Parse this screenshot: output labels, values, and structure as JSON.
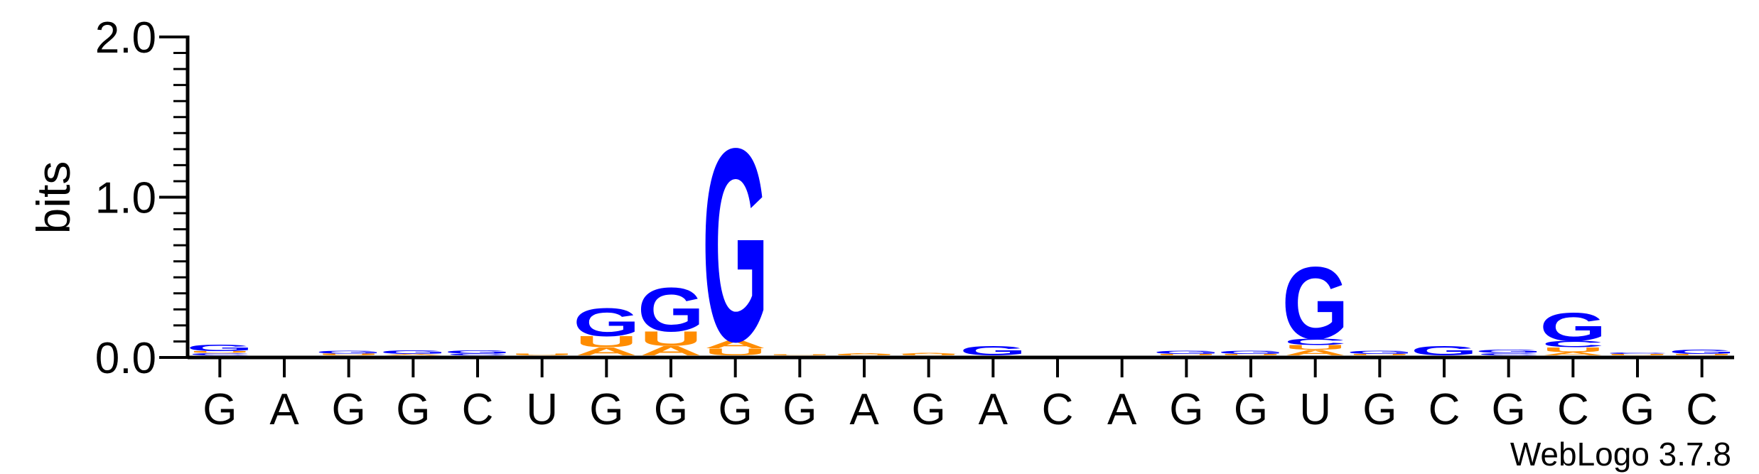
{
  "chart_data": {
    "type": "sequence-logo",
    "title": "",
    "ylabel": "bits",
    "xlabel": "",
    "ylim": [
      0,
      2.0
    ],
    "yticks": [
      "0.0",
      "1.0",
      "2.0"
    ],
    "credit": "WebLogo 3.7.8",
    "colors": {
      "G": "#0000ff",
      "C": "#0000ff",
      "U": "#ff8c00",
      "A": "#ff8c00"
    },
    "sequence": [
      "G",
      "A",
      "G",
      "G",
      "C",
      "U",
      "G",
      "G",
      "G",
      "G",
      "A",
      "G",
      "A",
      "C",
      "A",
      "G",
      "G",
      "U",
      "G",
      "C",
      "G",
      "C",
      "G",
      "C"
    ],
    "positions": [
      {
        "stack": [
          {
            "letter": "C",
            "bits": 0.015
          },
          {
            "letter": "U",
            "bits": 0.012
          },
          {
            "letter": "G",
            "bits": 0.04
          }
        ]
      },
      {
        "stack": []
      },
      {
        "stack": [
          {
            "letter": "U",
            "bits": 0.012
          },
          {
            "letter": "G",
            "bits": 0.018
          }
        ]
      },
      {
        "stack": [
          {
            "letter": "A",
            "bits": 0.008
          },
          {
            "letter": "G",
            "bits": 0.022
          }
        ]
      },
      {
        "stack": [
          {
            "letter": "C",
            "bits": 0.012
          },
          {
            "letter": "G",
            "bits": 0.02
          }
        ]
      },
      {
        "stack": [
          {
            "letter": "U",
            "bits": 0.012
          }
        ]
      },
      {
        "stack": [
          {
            "letter": "A",
            "bits": 0.05
          },
          {
            "letter": "U",
            "bits": 0.07
          },
          {
            "letter": "G",
            "bits": 0.18
          }
        ]
      },
      {
        "stack": [
          {
            "letter": "A",
            "bits": 0.06
          },
          {
            "letter": "U",
            "bits": 0.09
          },
          {
            "letter": "G",
            "bits": 0.28
          }
        ]
      },
      {
        "stack": [
          {
            "letter": "U",
            "bits": 0.045
          },
          {
            "letter": "A",
            "bits": 0.05
          },
          {
            "letter": "G",
            "bits": 1.23
          }
        ]
      },
      {
        "stack": [
          {
            "letter": "U",
            "bits": 0.006
          }
        ]
      },
      {
        "stack": [
          {
            "letter": "U",
            "bits": 0.006
          },
          {
            "letter": "A",
            "bits": 0.006
          }
        ]
      },
      {
        "stack": [
          {
            "letter": "U",
            "bits": 0.008
          },
          {
            "letter": "A",
            "bits": 0.006
          }
        ]
      },
      {
        "stack": [
          {
            "letter": "G",
            "bits": 0.06
          }
        ]
      },
      {
        "stack": []
      },
      {
        "stack": []
      },
      {
        "stack": [
          {
            "letter": "U",
            "bits": 0.01
          },
          {
            "letter": "G",
            "bits": 0.02
          }
        ]
      },
      {
        "stack": [
          {
            "letter": "U",
            "bits": 0.008
          },
          {
            "letter": "G",
            "bits": 0.02
          }
        ]
      },
      {
        "stack": [
          {
            "letter": "A",
            "bits": 0.035
          },
          {
            "letter": "U",
            "bits": 0.03
          },
          {
            "letter": "C",
            "bits": 0.04
          },
          {
            "letter": "G",
            "bits": 0.46
          }
        ]
      },
      {
        "stack": [
          {
            "letter": "U",
            "bits": 0.008
          },
          {
            "letter": "G",
            "bits": 0.02
          }
        ]
      },
      {
        "stack": [
          {
            "letter": "G",
            "bits": 0.06
          }
        ]
      },
      {
        "stack": [
          {
            "letter": "C",
            "bits": 0.015
          },
          {
            "letter": "G",
            "bits": 0.02
          }
        ]
      },
      {
        "stack": [
          {
            "letter": "A",
            "bits": 0.02
          },
          {
            "letter": "U",
            "bits": 0.03
          },
          {
            "letter": "C",
            "bits": 0.04
          },
          {
            "letter": "G",
            "bits": 0.18
          }
        ]
      },
      {
        "stack": [
          {
            "letter": "U",
            "bits": 0.008
          },
          {
            "letter": "C",
            "bits": 0.008
          }
        ]
      },
      {
        "stack": [
          {
            "letter": "U",
            "bits": 0.008
          },
          {
            "letter": "G",
            "bits": 0.025
          }
        ]
      }
    ]
  }
}
